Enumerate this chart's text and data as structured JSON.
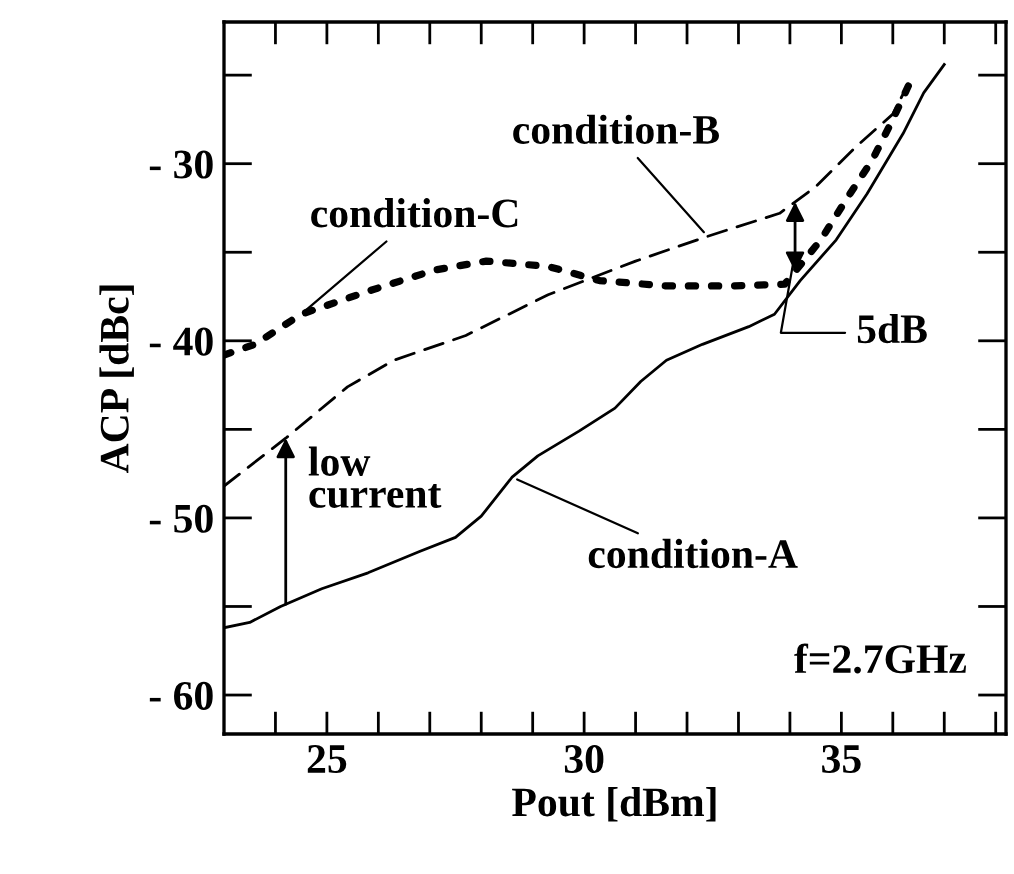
{
  "chart_data": {
    "type": "line",
    "xlabel": "Pout [dBm]",
    "ylabel": "ACP [dBc]",
    "xlim": [
      23,
      38.2
    ],
    "ylim": [
      -62.2,
      -22
    ],
    "xticks": [
      {
        "value": 24,
        "label": null
      },
      25,
      {
        "value": 26,
        "label": null
      },
      {
        "value": 27,
        "label": null
      },
      {
        "value": 28,
        "label": null
      },
      {
        "value": 29,
        "label": null
      },
      30,
      {
        "value": 31,
        "label": null
      },
      {
        "value": 32,
        "label": null
      },
      {
        "value": 33,
        "label": null
      },
      {
        "value": 34,
        "label": null
      },
      35,
      {
        "value": 36,
        "label": null
      },
      {
        "value": 37,
        "label": null
      },
      {
        "value": 38,
        "label": null
      }
    ],
    "yticks": [
      {
        "value": -60,
        "label": "- 60"
      },
      {
        "value": -55,
        "label": null
      },
      {
        "value": -50,
        "label": "- 50"
      },
      {
        "value": -45,
        "label": null
      },
      {
        "value": -40,
        "label": "- 40"
      },
      {
        "value": -35,
        "label": null
      },
      {
        "value": -30,
        "label": "- 30"
      },
      {
        "value": -25,
        "label": null
      }
    ],
    "series": [
      {
        "name": "condition-A",
        "color": "#000000",
        "line_style": "solid",
        "x": [
          23.0,
          23.5,
          24.1,
          24.9,
          25.8,
          26.8,
          27.5,
          28.0,
          28.6,
          29.1,
          29.9,
          30.6,
          31.1,
          31.6,
          32.3,
          33.2,
          33.7,
          34.2,
          34.9,
          35.5,
          36.2,
          36.6,
          37.0
        ],
        "values": [
          -56.2,
          -55.9,
          -55.0,
          -54.0,
          -53.1,
          -51.9,
          -51.1,
          -49.9,
          -47.7,
          -46.5,
          -45.1,
          -43.8,
          -42.3,
          -41.1,
          -40.2,
          -39.2,
          -38.5,
          -36.6,
          -34.3,
          -31.7,
          -28.3,
          -26.0,
          -24.4
        ]
      },
      {
        "name": "condition-B",
        "color": "#000000",
        "line_style": "dashed",
        "x": [
          23.0,
          24.2,
          25.4,
          26.3,
          27.7,
          29.3,
          31.0,
          32.4,
          33.8,
          34.5,
          35.3,
          36.0,
          36.3
        ],
        "values": [
          -48.2,
          -45.5,
          -42.6,
          -41.1,
          -39.7,
          -37.4,
          -35.5,
          -34.1,
          -32.8,
          -31.3,
          -29.0,
          -27.2,
          -25.5
        ]
      },
      {
        "name": "condition-C",
        "color": "#000000",
        "line_style": "dotted",
        "x": [
          23.0,
          23.6,
          24.5,
          25.8,
          27.1,
          28.1,
          29.3,
          30.3,
          31.6,
          32.9,
          33.9,
          34.6,
          35.1,
          35.6,
          36.0,
          36.4
        ],
        "values": [
          -40.8,
          -40.2,
          -38.5,
          -37.2,
          -36.0,
          -35.5,
          -35.8,
          -36.6,
          -36.9,
          -36.9,
          -36.8,
          -34.3,
          -32.0,
          -29.8,
          -27.5,
          -25.0
        ]
      }
    ],
    "annotations": [
      {
        "text": "low\ncurrent",
        "x": 24.2,
        "y": -45.5
      },
      {
        "text": "5dB",
        "x": 34.1,
        "y": -35
      },
      "f=2.7GHz"
    ]
  }
}
